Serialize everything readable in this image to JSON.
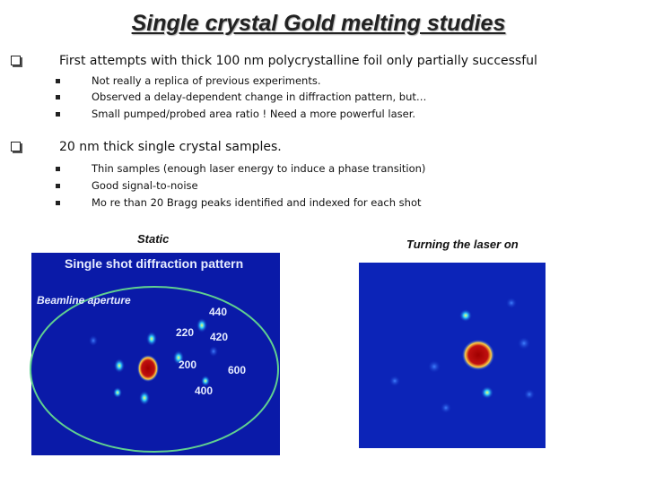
{
  "header": {
    "title": "Single crystal Gold melting studies"
  },
  "bullets": [
    {
      "text": "First attempts with thick 100 nm polycrystalline foil only partially successful",
      "subs": [
        "Not really a replica of previous experiments.",
        "Observed a delay-dependent change in diffraction pattern, but…",
        "Small pumped/probed area ratio !  Need a more powerful laser."
      ]
    },
    {
      "text": "20 nm thick single crystal samples.",
      "subs": [
        "Thin samples (enough laser energy to induce a phase transition)",
        "Good signal-to-noise",
        "Mo re than 20 Bragg peaks identified and indexed for each shot"
      ]
    }
  ],
  "figures": [
    {
      "caption": "Static",
      "image_title": "Single shot diffraction pattern",
      "image_note": "Beamline aperture",
      "peak_labels": [
        "440",
        "220",
        "420",
        "200",
        "600",
        "400"
      ]
    },
    {
      "caption": "Turning the laser on"
    }
  ]
}
